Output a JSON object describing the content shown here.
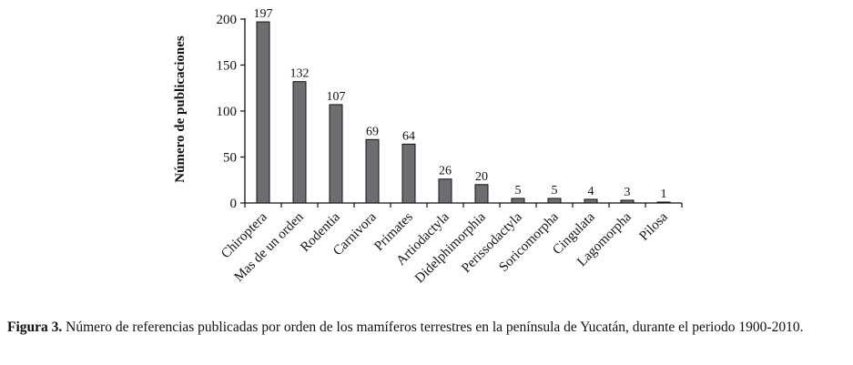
{
  "chart_data": {
    "type": "bar",
    "categories": [
      "Chiroptera",
      "Mas de un orden",
      "Rodentia",
      "Carnivora",
      "Primates",
      "Artiodactyla",
      "Didelphimorphia",
      "Perissodactyla",
      "Soricomorpha",
      "Cingulata",
      "Lagomorpha",
      "Pilosa"
    ],
    "values": [
      197,
      132,
      107,
      69,
      64,
      26,
      20,
      5,
      5,
      4,
      3,
      1
    ],
    "ylabel": "Número de publicaciones",
    "xlabel": "",
    "ylim": [
      0,
      200
    ],
    "yticks": [
      0,
      50,
      100,
      150,
      200
    ],
    "bar_color": "#6d6e71",
    "bar_edge_color": "#111111",
    "data_labels": true,
    "grid": false
  },
  "caption": {
    "label": "Figura 3.",
    "text": " Número de referencias publicadas por orden de los mamíferos terrestres en la península de Yucatán, durante el periodo 1900-2010."
  }
}
